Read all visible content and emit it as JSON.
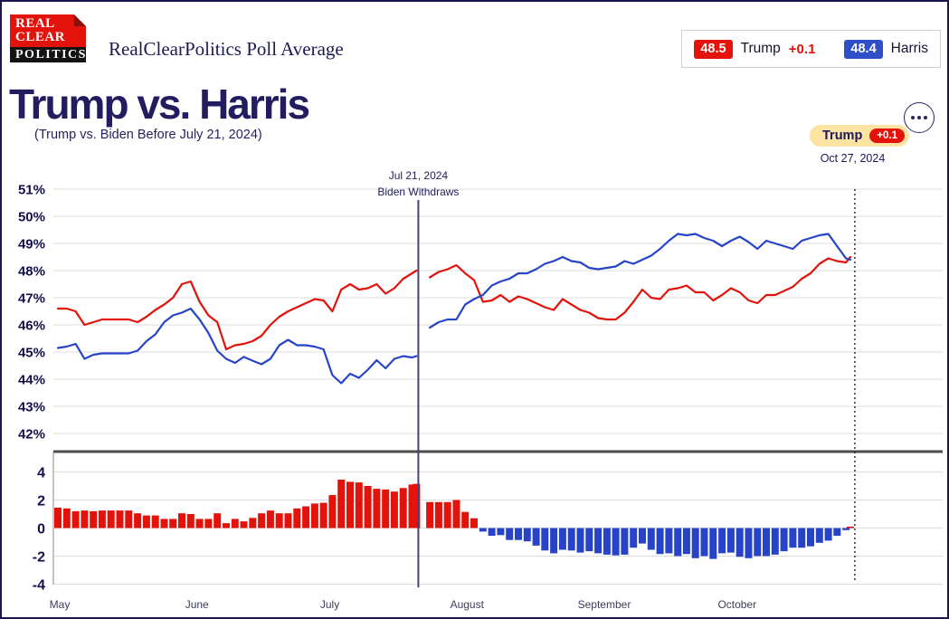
{
  "header": {
    "logo": {
      "line1": "REAL",
      "line2": "CLEAR",
      "line3": "POLITICS"
    },
    "brand_title": "RealClearPolitics Poll Average",
    "legend": {
      "trump": {
        "value": "48.5",
        "label": "Trump",
        "change": "+0.1",
        "color": "#e3120b"
      },
      "harris": {
        "value": "48.4",
        "label": "Harris",
        "color": "#2e4fc8"
      }
    }
  },
  "title": {
    "main": "Trump vs. Harris",
    "subtitle": "(Trump vs. Biden Before July 21, 2024)"
  },
  "callout": {
    "leader": "Trump",
    "change": "+0.1",
    "date": "Oct 27, 2024"
  },
  "menu": {
    "icon": "ellipsis"
  },
  "chart_data": {
    "type": "line+bar",
    "title": "Trump vs. Harris poll average with spread bars",
    "series": [
      {
        "name": "Trump",
        "color": "#e3120b"
      },
      {
        "name": "Harris",
        "color": "#2744c8"
      }
    ],
    "points_format": [
      "days_since_may_1",
      "trump_pct",
      "harris_pct"
    ],
    "points": [
      [
        0,
        46.6,
        45.15
      ],
      [
        2,
        46.6,
        45.2
      ],
      [
        4,
        46.5,
        45.3
      ],
      [
        6,
        46.0,
        44.75
      ],
      [
        8,
        46.1,
        44.9
      ],
      [
        10,
        46.2,
        44.95
      ],
      [
        12,
        46.2,
        44.95
      ],
      [
        14,
        46.2,
        44.95
      ],
      [
        16,
        46.2,
        44.95
      ],
      [
        18,
        46.1,
        45.05
      ],
      [
        20,
        46.3,
        45.4
      ],
      [
        22,
        46.55,
        45.65
      ],
      [
        24,
        46.75,
        46.1
      ],
      [
        26,
        47.0,
        46.35
      ],
      [
        28,
        47.5,
        46.45
      ],
      [
        30,
        47.6,
        46.6
      ],
      [
        32,
        46.85,
        46.2
      ],
      [
        34,
        46.35,
        45.7
      ],
      [
        36,
        46.1,
        45.05
      ],
      [
        38,
        45.1,
        44.75
      ],
      [
        40,
        45.25,
        44.6
      ],
      [
        42,
        45.3,
        44.82
      ],
      [
        44,
        45.4,
        44.68
      ],
      [
        46,
        45.6,
        44.55
      ],
      [
        48,
        46.0,
        44.75
      ],
      [
        50,
        46.3,
        45.25
      ],
      [
        52,
        46.5,
        45.45
      ],
      [
        54,
        46.65,
        45.25
      ],
      [
        56,
        46.8,
        45.25
      ],
      [
        58,
        46.95,
        45.2
      ],
      [
        60,
        46.9,
        45.1
      ],
      [
        62,
        46.5,
        44.15
      ],
      [
        64,
        47.3,
        43.85
      ],
      [
        66,
        47.5,
        44.2
      ],
      [
        68,
        47.3,
        44.05
      ],
      [
        70,
        47.35,
        44.35
      ],
      [
        72,
        47.5,
        44.7
      ],
      [
        74,
        47.15,
        44.4
      ],
      [
        76,
        47.35,
        44.75
      ],
      [
        78,
        47.7,
        44.85
      ],
      [
        80,
        47.9,
        44.8
      ],
      [
        81,
        48.0,
        44.85
      ],
      [
        82,
        null,
        null
      ],
      [
        84,
        47.75,
        45.9
      ],
      [
        86,
        47.95,
        46.1
      ],
      [
        88,
        48.05,
        46.2
      ],
      [
        90,
        48.2,
        46.2
      ],
      [
        92,
        47.9,
        46.75
      ],
      [
        94,
        47.65,
        46.95
      ],
      [
        96,
        46.85,
        47.1
      ],
      [
        98,
        46.9,
        47.45
      ],
      [
        100,
        47.1,
        47.6
      ],
      [
        102,
        46.85,
        47.7
      ],
      [
        104,
        47.05,
        47.9
      ],
      [
        106,
        46.95,
        47.9
      ],
      [
        108,
        46.8,
        48.05
      ],
      [
        110,
        46.65,
        48.25
      ],
      [
        112,
        46.55,
        48.35
      ],
      [
        114,
        46.95,
        48.5
      ],
      [
        116,
        46.75,
        48.35
      ],
      [
        118,
        46.55,
        48.3
      ],
      [
        120,
        46.45,
        48.1
      ],
      [
        122,
        46.25,
        48.05
      ],
      [
        124,
        46.2,
        48.1
      ],
      [
        126,
        46.2,
        48.15
      ],
      [
        128,
        46.45,
        48.35
      ],
      [
        130,
        46.85,
        48.25
      ],
      [
        132,
        47.3,
        48.4
      ],
      [
        134,
        47.0,
        48.55
      ],
      [
        136,
        46.95,
        48.8
      ],
      [
        138,
        47.3,
        49.1
      ],
      [
        140,
        47.35,
        49.35
      ],
      [
        142,
        47.45,
        49.3
      ],
      [
        144,
        47.2,
        49.35
      ],
      [
        146,
        47.2,
        49.2
      ],
      [
        148,
        46.9,
        49.1
      ],
      [
        150,
        47.1,
        48.9
      ],
      [
        152,
        47.35,
        49.1
      ],
      [
        154,
        47.2,
        49.25
      ],
      [
        156,
        46.9,
        49.05
      ],
      [
        158,
        46.8,
        48.8
      ],
      [
        160,
        47.1,
        49.1
      ],
      [
        162,
        47.1,
        49.0
      ],
      [
        164,
        47.25,
        48.9
      ],
      [
        166,
        47.4,
        48.8
      ],
      [
        168,
        47.7,
        49.1
      ],
      [
        170,
        47.9,
        49.2
      ],
      [
        172,
        48.25,
        49.3
      ],
      [
        174,
        48.45,
        49.35
      ],
      [
        176,
        48.35,
        48.9
      ],
      [
        178,
        48.3,
        48.45
      ],
      [
        179,
        48.5,
        48.4
      ]
    ],
    "y_axis": {
      "labels": [
        "51%",
        "50%",
        "49%",
        "48%",
        "47%",
        "46%",
        "45%",
        "44%",
        "43%",
        "42%"
      ],
      "min": 42,
      "max": 51
    },
    "spread_axis": {
      "labels": [
        "4",
        "2",
        "0",
        "-2",
        "-4"
      ],
      "values": [
        4,
        2,
        0,
        -2,
        -4
      ],
      "min": -4,
      "max": 4,
      "note": "bars = trump_pct - harris_pct"
    },
    "months": [
      {
        "label": "May",
        "day": 0
      },
      {
        "label": "June",
        "day": 31
      },
      {
        "label": "July",
        "day": 61
      },
      {
        "label": "August",
        "day": 92
      },
      {
        "label": "September",
        "day": 123
      },
      {
        "label": "October",
        "day": 153
      }
    ],
    "annotation": {
      "date_label": "Jul 21, 2024",
      "text": "Biden Withdraws",
      "day": 81
    },
    "end_line": {
      "day": 180,
      "style": "dotted"
    },
    "grid_color": "#dcdcdc",
    "divider_color": "#4d4d4d",
    "vline_color": "#4a4270"
  }
}
